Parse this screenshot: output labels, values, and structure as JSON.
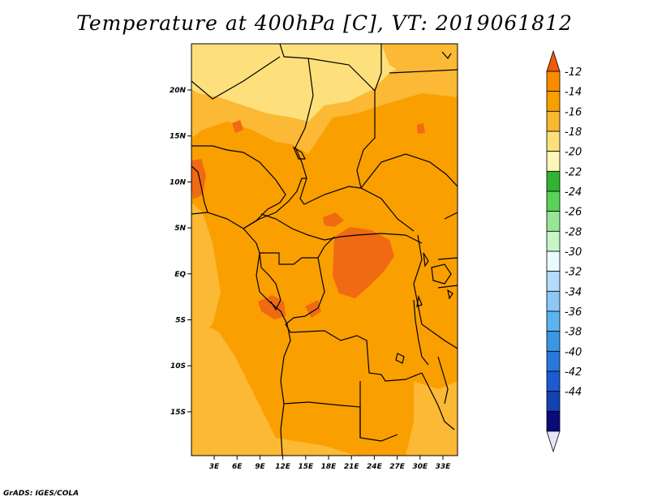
{
  "title": "Temperature at 400hPa [C], VT: 2019061812",
  "credit": "GrADS: IGES/COLA",
  "map": {
    "lon_labels": [
      "3E",
      "6E",
      "9E",
      "12E",
      "15E",
      "18E",
      "21E",
      "24E",
      "27E",
      "30E",
      "33E"
    ],
    "lat_labels": [
      "20N",
      "15N",
      "10N",
      "5N",
      "EQ",
      "5S",
      "10S",
      "15S"
    ]
  },
  "colorbar": {
    "labels": [
      "-12",
      "-14",
      "-16",
      "-18",
      "-20",
      "-22",
      "-24",
      "-26",
      "-28",
      "-30",
      "-32",
      "-34",
      "-36",
      "-38",
      "-40",
      "-42",
      "-44"
    ],
    "colors": [
      "#f05a0a",
      "#fa8c00",
      "#f8a000",
      "#fab830",
      "#fde07c",
      "#fff5b8",
      "#32b432",
      "#5ad25a",
      "#96e696",
      "#c8f5c8",
      "#eafaff",
      "#b4dcfa",
      "#8cc8f5",
      "#5ab4f0",
      "#3c96e6",
      "#2878dc",
      "#1e5ad2",
      "#1441b4",
      "#0a0a78",
      "#e6e6fa"
    ]
  },
  "chart_data": {
    "type": "heatmap",
    "title": "Temperature at 400hPa [C], VT: 2019061812",
    "x_ticks": [
      "3E",
      "6E",
      "9E",
      "12E",
      "15E",
      "18E",
      "21E",
      "24E",
      "27E",
      "30E",
      "33E"
    ],
    "y_ticks": [
      "20N",
      "15N",
      "10N",
      "5N",
      "EQ",
      "5S",
      "10S",
      "15S"
    ],
    "colorbar_levels": [
      -12,
      -14,
      -16,
      -18,
      -20,
      -22,
      -24,
      -26,
      -28,
      -30,
      -32,
      -34,
      -36,
      -38,
      -40,
      -42,
      -44
    ],
    "dominant_range": "-14 to -16"
  }
}
